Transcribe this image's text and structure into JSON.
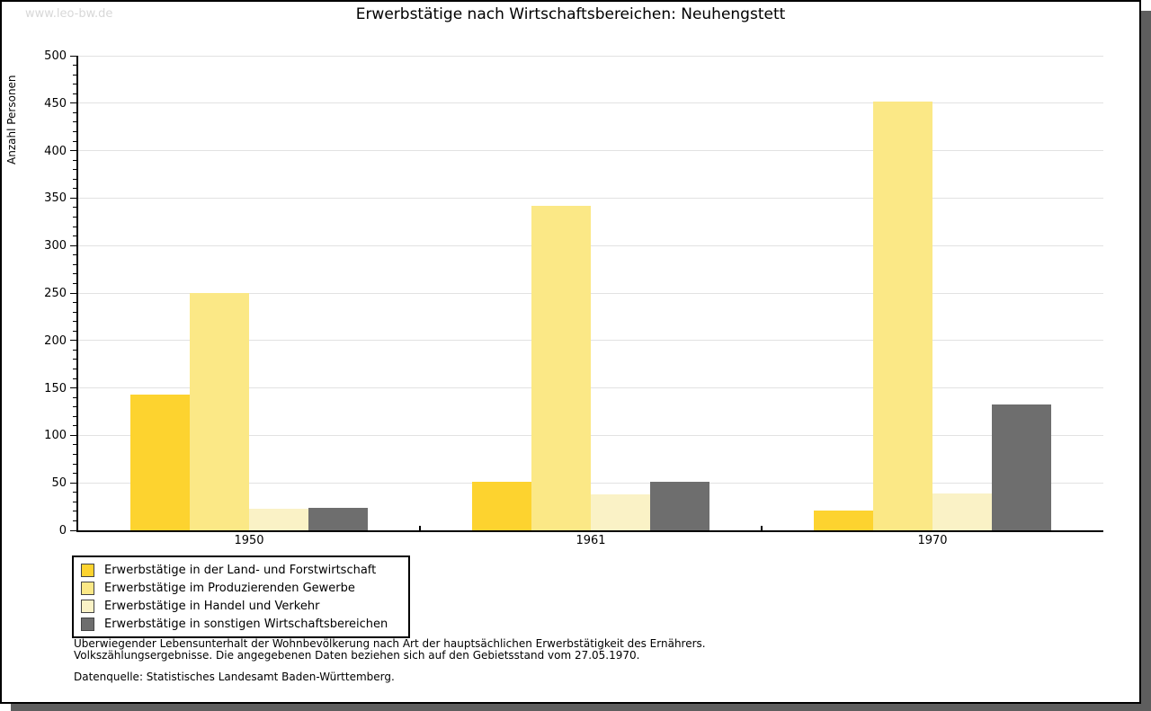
{
  "watermark": "www.leo-bw.de",
  "header": {
    "title": "Erwerbstätige nach Wirtschaftsbereichen: Neuhengstett"
  },
  "chart_data": {
    "type": "bar",
    "title": "Erwerbstätige nach Wirtschaftsbereichen: Neuhengstett",
    "categories": [
      "1950",
      "1961",
      "1970"
    ],
    "series": [
      {
        "name": "Erwerbstätige in der Land- und Forstwirtschaft",
        "color": "#FDD32F",
        "values": [
          143,
          51,
          21
        ]
      },
      {
        "name": "Erwerbstätige im Produzierenden Gewerbe",
        "color": "#FBE886",
        "values": [
          250,
          342,
          452
        ]
      },
      {
        "name": "Erwerbstätige in Handel und Verkehr",
        "color": "#FAF2C6",
        "values": [
          23,
          38,
          39
        ]
      },
      {
        "name": "Erwerbstätige in sonstigen Wirtschaftsbereichen",
        "color": "#6E6E6E",
        "values": [
          24,
          51,
          133
        ]
      }
    ],
    "xlabel": "",
    "ylabel": "Anzahl Personen",
    "ylim": [
      0,
      500
    ],
    "ytick_step": 50,
    "y_minor_tick_step": 10,
    "grid": true,
    "gridline_color": "#E2E2E2",
    "legend_position": "bottom-left"
  },
  "notes": {
    "line1": "Überwiegender Lebensunterhalt der Wohnbevölkerung nach Art der hauptsächlichen Erwerbstätigkeit des Ernährers.",
    "line2": "Volkszählungsergebnisse. Die angegebenen Daten beziehen sich auf den Gebietsstand vom 27.05.1970.",
    "source": "Datenquelle: Statistisches Landesamt Baden-Württemberg."
  }
}
